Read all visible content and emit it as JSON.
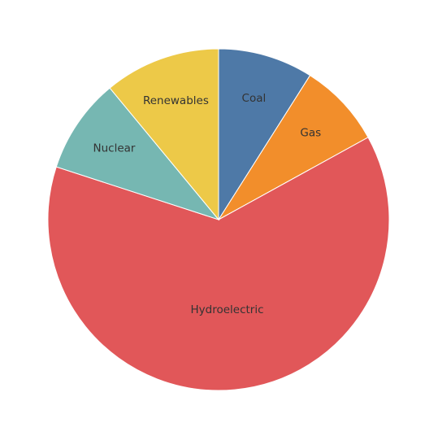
{
  "chart_data": {
    "type": "pie",
    "title": "",
    "start": "12 o'clock, clockwise",
    "legend": "none (labels on slices)",
    "slices": [
      {
        "label": "Coal",
        "value": 9,
        "color": "#4e79a7"
      },
      {
        "label": "Gas",
        "value": 8,
        "color": "#f28e2b"
      },
      {
        "label": "Hydroelectric",
        "value": 63,
        "color": "#e15759"
      },
      {
        "label": "Nuclear",
        "value": 9,
        "color": "#76b7b2"
      },
      {
        "label": "Renewables",
        "value": 11,
        "color": "#edc948"
      }
    ]
  }
}
